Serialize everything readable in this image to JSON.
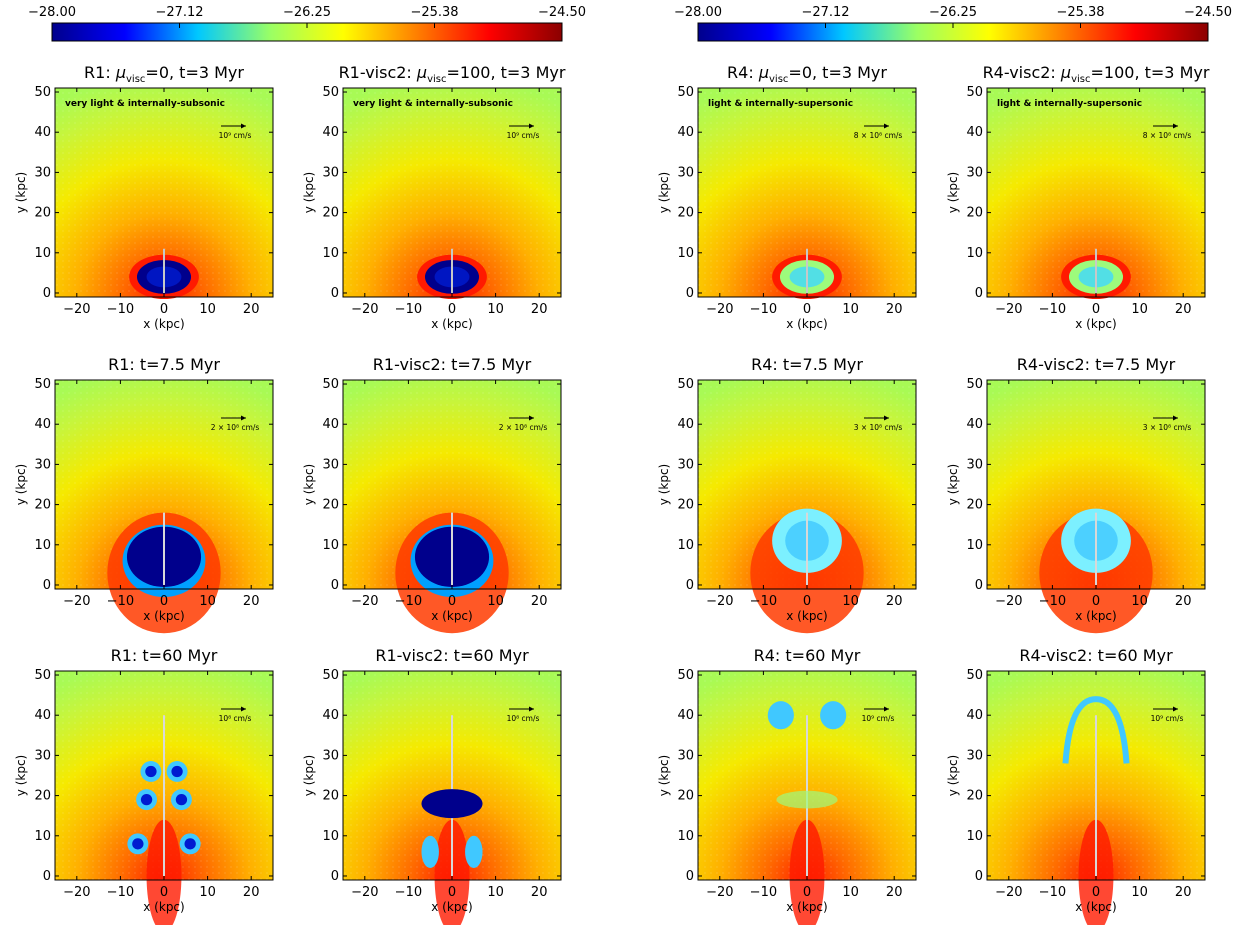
{
  "colorbar": {
    "ticks": [
      "−28.00",
      "−27.12",
      "−26.25",
      "−25.38",
      "−24.50"
    ],
    "colors": [
      "#00008c",
      "#0000ff",
      "#00c8ff",
      "#9bff64",
      "#ffff00",
      "#ff8000",
      "#ff0000",
      "#8b0000"
    ]
  },
  "axes": {
    "xlabel": "x (kpc)",
    "ylabel": "y (kpc)",
    "xticks": [
      "−20",
      "−10",
      "0",
      "10",
      "20"
    ],
    "yticks": [
      "0",
      "10",
      "20",
      "30",
      "40",
      "50"
    ]
  },
  "panels": [
    {
      "run": "R1",
      "visc": "0",
      "time": "3",
      "annotation": "very light & internally-subsonic",
      "vel": "10⁹ cm/s",
      "cavity": "dense-blue",
      "size": 1
    },
    {
      "run": "R1-visc2",
      "visc": "100",
      "time": "3",
      "annotation": "very light & internally-subsonic",
      "vel": "10⁹ cm/s",
      "cavity": "dense-blue",
      "size": 1
    },
    {
      "run": "R4",
      "visc": "0",
      "time": "3",
      "annotation": "light & internally-supersonic",
      "vel": "8 × 10⁸ cm/s",
      "cavity": "light",
      "size": 1
    },
    {
      "run": "R4-visc2",
      "visc": "100",
      "time": "3",
      "annotation": "light & internally-supersonic",
      "vel": "8 × 10⁸ cm/s",
      "cavity": "light",
      "size": 1
    },
    {
      "run": "R1",
      "time": "7.5",
      "vel": "2 × 10⁸ cm/s",
      "cavity": "dense-blue",
      "size": 2
    },
    {
      "run": "R1-visc2",
      "time": "7.5",
      "vel": "2 × 10⁸ cm/s",
      "cavity": "dense-blue",
      "size": 2
    },
    {
      "run": "R4",
      "time": "7.5",
      "vel": "3 × 10⁸ cm/s",
      "cavity": "light",
      "size": 2
    },
    {
      "run": "R4-visc2",
      "time": "7.5",
      "vel": "3 × 10⁸ cm/s",
      "cavity": "light",
      "size": 2
    },
    {
      "run": "R1",
      "time": "60",
      "vel": "10⁸ cm/s",
      "cavity": "bubbles",
      "size": 3
    },
    {
      "run": "R1-visc2",
      "time": "60",
      "vel": "10⁸ cm/s",
      "cavity": "cap",
      "size": 3
    },
    {
      "run": "R4",
      "time": "60",
      "vel": "10⁹ cm/s",
      "cavity": "plume",
      "size": 3
    },
    {
      "run": "R4-visc2",
      "time": "60",
      "vel": "10⁹ cm/s",
      "cavity": "arc",
      "size": 3
    }
  ],
  "time_unit": "Myr"
}
